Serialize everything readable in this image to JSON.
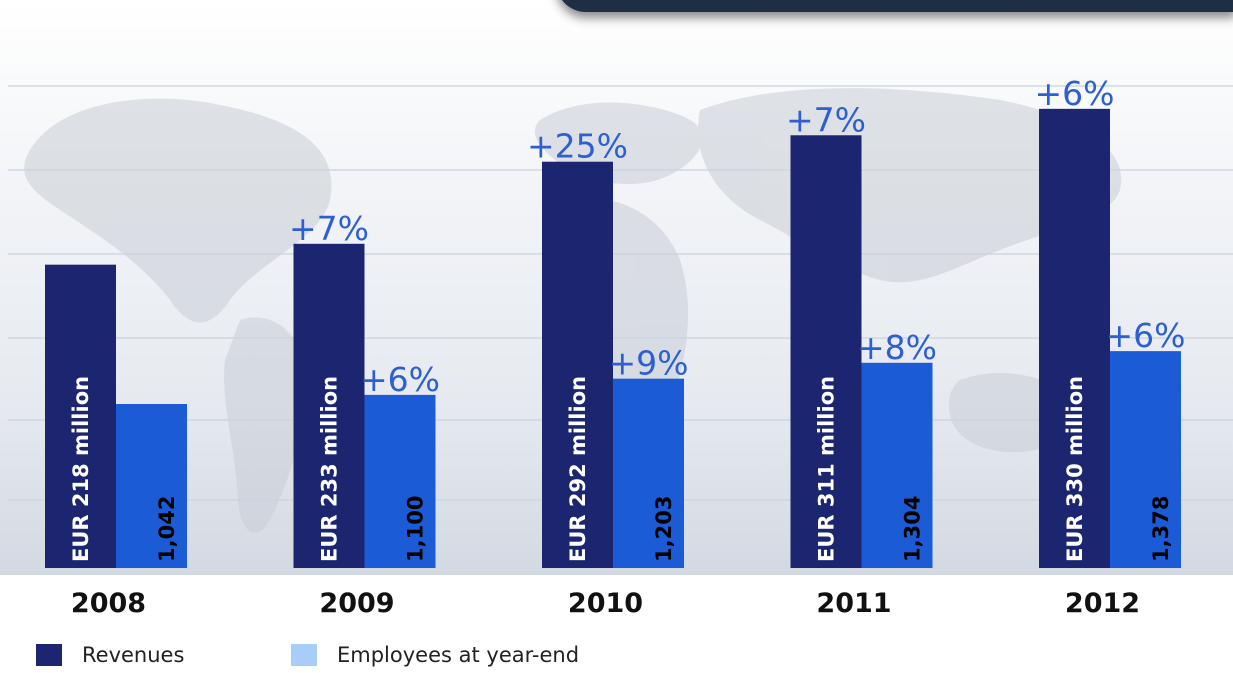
{
  "chart_data": {
    "type": "bar",
    "categories": [
      "2008",
      "2009",
      "2010",
      "2011",
      "2012"
    ],
    "ylim": [
      0,
      360
    ],
    "grid": true,
    "legend_position": "bottom-left",
    "series": [
      {
        "name": "Revenues",
        "color": "#1b2570",
        "values": [
          218,
          233,
          292,
          311,
          330
        ],
        "bar_labels": [
          "EUR 218 million",
          "EUR 233 million",
          "EUR 292 million",
          "EUR 311 million",
          "EUR 330 million"
        ],
        "growth_labels": [
          "",
          "+7%",
          "+25%",
          "+7%",
          "+6%"
        ]
      },
      {
        "name": "Employees at year-end",
        "color": "#1c5bd6",
        "legend_color": "#a8cdf6",
        "values": [
          1042,
          1100,
          1203,
          1304,
          1378
        ],
        "bar_labels": [
          "1,042",
          "1,100",
          "1,203",
          "1,304",
          "1,378"
        ],
        "growth_labels": [
          "",
          "+6%",
          "+9%",
          "+8%",
          "+6%"
        ]
      }
    ],
    "label_color": "#2e5fd2"
  }
}
